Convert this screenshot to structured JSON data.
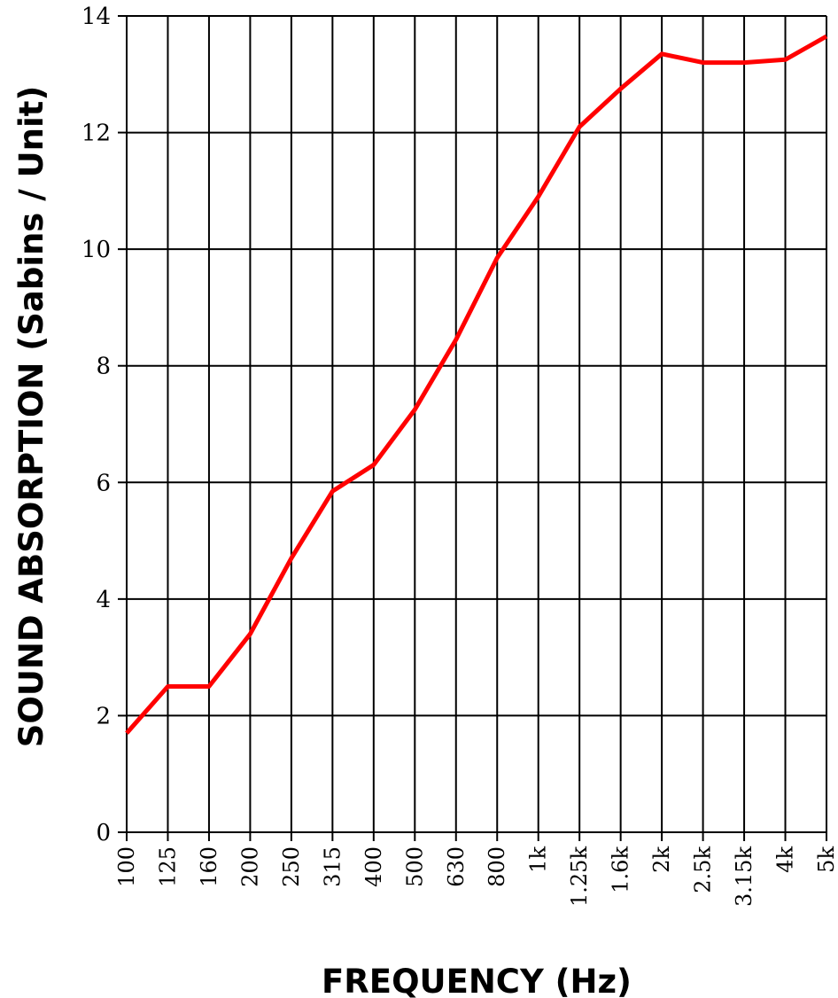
{
  "chart_data": {
    "type": "line",
    "title": "",
    "xlabel": "FREQUENCY (Hz)",
    "ylabel": "SOUND ABSORPTION (Sabins / Unit)",
    "categories": [
      "100",
      "125",
      "160",
      "200",
      "250",
      "315",
      "400",
      "500",
      "630",
      "800",
      "1k",
      "1.25k",
      "1.6k",
      "2k",
      "2.5k",
      "3.15k",
      "4k",
      "5k"
    ],
    "series": [
      {
        "values": [
          1.7,
          2.5,
          2.5,
          3.4,
          4.7,
          5.85,
          6.3,
          7.25,
          8.45,
          9.85,
          10.9,
          12.1,
          12.75,
          13.35,
          13.2,
          13.2,
          13.25,
          13.65
        ],
        "color": "#ff0000"
      }
    ],
    "ylim": [
      0,
      14
    ],
    "yticks": [
      0,
      2,
      4,
      6,
      8,
      10,
      12,
      14
    ],
    "grid": true,
    "grid_color": "#000000",
    "line_color": "#ff0000"
  }
}
